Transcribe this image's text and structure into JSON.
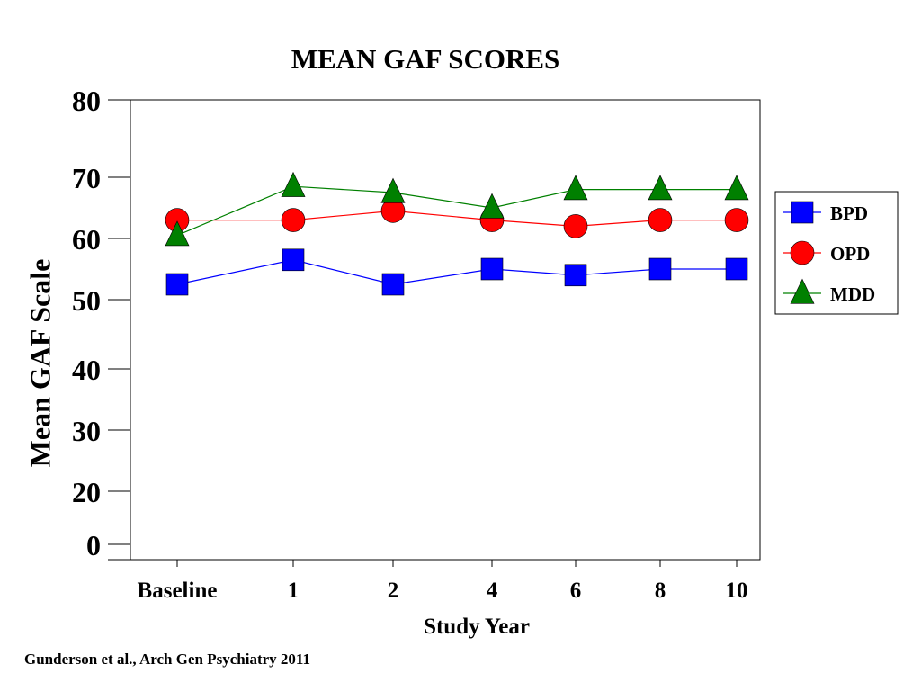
{
  "chart_data": {
    "type": "line",
    "title": "MEAN GAF SCORES",
    "xlabel": "Study Year",
    "ylabel": "Mean GAF Scale",
    "categories": [
      "Baseline",
      "1",
      "2",
      "4",
      "6",
      "8",
      "10"
    ],
    "y_ticks": [
      "0",
      "20",
      "30",
      "40",
      "50",
      "60",
      "70",
      "80"
    ],
    "ylim": [
      0,
      80
    ],
    "grid": false,
    "legend_position": "right",
    "series": [
      {
        "name": "BPD",
        "marker": "square",
        "color": "#0000ff",
        "values": [
          52.5,
          56.5,
          52.5,
          55,
          54,
          55,
          55
        ]
      },
      {
        "name": "OPD",
        "marker": "circle",
        "color": "#ff0000",
        "values": [
          63,
          63,
          64.5,
          63,
          62,
          63,
          63
        ]
      },
      {
        "name": "MDD",
        "marker": "triangle",
        "color": "#008000",
        "values": [
          60.5,
          68.5,
          67.5,
          65,
          68,
          68,
          68
        ]
      }
    ]
  },
  "citation": "Gunderson et al., Arch Gen Psychiatry 2011"
}
